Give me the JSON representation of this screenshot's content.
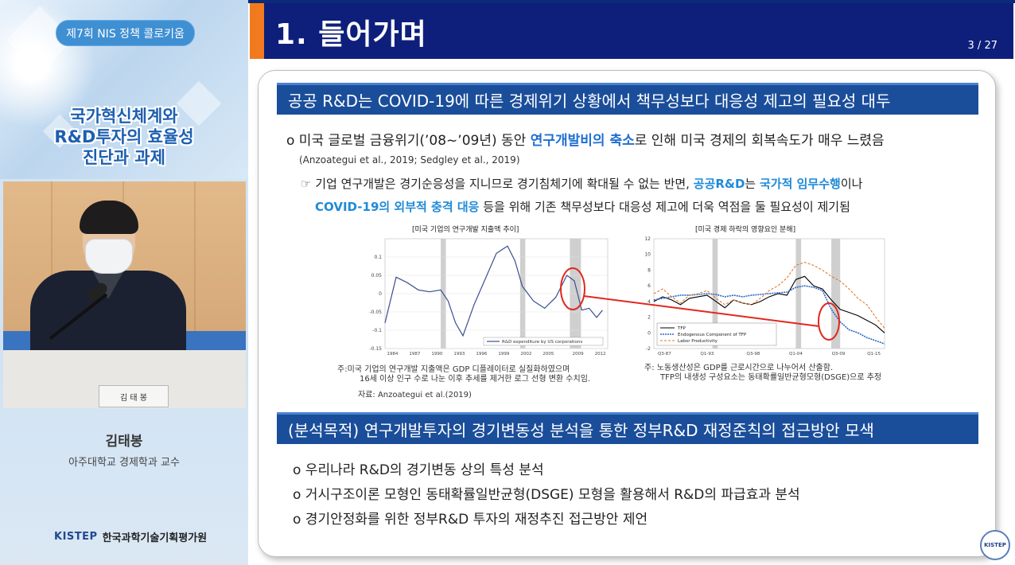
{
  "left_panel": {
    "event_label": "제7회 NIS 정책 콜로키움",
    "session_title_lines": [
      "국가혁신체계와",
      "R&D투자의 효율성",
      "진단과 과제"
    ],
    "nameplate": "김 태 봉",
    "speaker_name": "김태봉",
    "speaker_affiliation": "아주대학교 경제학과 교수",
    "org_logo_mark": "KISTEP",
    "org_name": "한국과학기술기획평가원"
  },
  "slide": {
    "title": "1. 들어가며",
    "page": "3 / 27",
    "section1": "공공 R&D는 COVID-19에 따른 경제위기 상황에서 책무성보다 대응성 제고의 필요성 대두",
    "bullet1": {
      "prefix": "o 미국 글로벌 금융위기(’08~’09년) 동안 ",
      "highlight": "연구개발비의 축소",
      "suffix": "로 인해 미국 경제의 회복속도가 매우 느렸음"
    },
    "citation1": "(Anzoategui et al., 2019; Sedgley et al., 2019)",
    "point": {
      "marker": "☞",
      "line1_a": " 기업 연구개발은 경기순응성을 지니므로 경기침체기에 확대될 수 없는 반면, ",
      "line1_hl1": "공공R&D",
      "line1_b": "는 ",
      "line1_hl2": "국가적 임무수행",
      "line1_c": "이나",
      "line2_hl": "COVID-19의 외부적 충격 대응",
      "line2_b": " 등을 위해 기존 책무성보다 대응성 제고에 더욱 역점을 둘 필요성이 제기됨"
    },
    "chart1_title": "[미국 기업의 연구개발 지출액 추이]",
    "chart1_note_line1": "주:미국 기업의 연구개발 지출액은 GDP 디플레이터로 실질화하였으며",
    "chart1_note_line2": "16세 이상 인구 수로 나눈 이후 추세를 제거한 로그 선형 변환 수치임.",
    "chart1_source": "자료: Anzoategui et al.(2019)",
    "chart2_title": "[미국 경제 하락의 영향요인 분해]",
    "chart2_note_line1": "주: 노동생산성은 GDP를 근로시간으로 나누어서 산출함.",
    "chart2_note_line2": "TFP의 내생성 구성요소는 동태확률일반균형모형(DSGE)으로 추정",
    "section2": "(분석목적) 연구개발투자의 경기변동성 분석을 통한 정부R&D 재정준칙의 접근방안 모색",
    "bullets": [
      "o 우리나라 R&D의 경기변동 상의 특성 분석",
      "o 거시구조이론 모형인 동태확률일반균형(DSGE) 모형을 활용해서 R&D의 파급효과 분석",
      "o 경기안정화를 위한 정부R&D 투자의 재정추진 접근방안 제언"
    ],
    "corner_seal": "KISTEP"
  },
  "chart_data": [
    {
      "type": "line",
      "x_tick_labels": [
        "1984",
        "1987",
        "1990",
        "1993",
        "1996",
        "1999",
        "2002",
        "2005",
        "2009",
        "2012"
      ],
      "y_tick_labels": [
        "0.1",
        "0.05",
        "0",
        "-0.05",
        "-0.1",
        "-0.15"
      ],
      "ylim": [
        -0.15,
        0.15
      ],
      "xlim": [
        1983,
        2013
      ],
      "shaded_periods": [
        [
          1990.5,
          1991.2
        ],
        [
          2001.2,
          2001.9
        ],
        [
          2007.9,
          2009.4
        ]
      ],
      "series": [
        {
          "name": "R&D expenditure by US corporations",
          "color": "#3b4f8f",
          "x": [
            1983,
            1984.5,
            1986,
            1987.5,
            1989,
            1990.5,
            1991.5,
            1992.5,
            1993.5,
            1995,
            1996.5,
            1998,
            1999.5,
            2000.5,
            2001.5,
            2003,
            2004.5,
            2006,
            2007.5,
            2008.5,
            2009.5,
            2010.5,
            2011.5,
            2012.3
          ],
          "y": [
            -0.08,
            0.045,
            0.03,
            0.01,
            0.005,
            0.01,
            -0.02,
            -0.08,
            -0.115,
            -0.03,
            0.04,
            0.11,
            0.13,
            0.09,
            0.02,
            -0.02,
            -0.04,
            -0.01,
            0.05,
            0.035,
            -0.045,
            -0.04,
            -0.065,
            -0.045
          ]
        }
      ]
    },
    {
      "type": "line",
      "x_tick_labels": [
        "Q3-87",
        "Q1-93",
        "Q3-98",
        "Q1-04",
        "Q3-09",
        "Q1-15"
      ],
      "y_tick_labels": [
        "12",
        "10",
        "8",
        "6",
        "4",
        "2",
        "0",
        "-2"
      ],
      "ylim": [
        -2,
        12
      ],
      "shaded_periods": [
        [
          3.3,
          3.6
        ],
        [
          8.0,
          8.3
        ],
        [
          10.0,
          10.5
        ]
      ],
      "legend": {
        "placement": "bottom-left",
        "entries": [
          "TFP",
          "Endogenous Component of TFP",
          "Labor Productivity"
        ]
      },
      "series": [
        {
          "name": "TFP",
          "color": "#000000",
          "x": [
            0,
            0.5,
            1,
            1.5,
            2,
            2.5,
            3,
            3.5,
            4,
            4.5,
            5,
            5.5,
            6,
            6.5,
            7,
            7.5,
            8,
            8.5,
            9,
            9.5,
            10,
            10.5,
            11,
            11.5,
            12,
            12.5,
            13
          ],
          "y": [
            4,
            4.6,
            4.2,
            3.6,
            4.4,
            4.6,
            4.8,
            4.0,
            3.2,
            4.2,
            3.8,
            3.6,
            4.0,
            4.6,
            5.0,
            4.8,
            6.8,
            7.2,
            6.0,
            5.6,
            4.2,
            3.0,
            2.6,
            2.2,
            1.6,
            1.0,
            0.0
          ]
        },
        {
          "name": "Endogenous Component of TFP",
          "color": "#2a66c6",
          "x": [
            0,
            0.5,
            1,
            1.5,
            2,
            2.5,
            3,
            3.5,
            4,
            4.5,
            5,
            5.5,
            6,
            6.5,
            7,
            7.5,
            8,
            8.5,
            9,
            9.5,
            10,
            10.5,
            11,
            11.5,
            12,
            12.5,
            13
          ],
          "y": [
            4.2,
            4.4,
            4.6,
            4.8,
            4.8,
            4.9,
            5.0,
            4.9,
            4.6,
            4.8,
            4.6,
            4.8,
            4.9,
            5.0,
            5.1,
            5.2,
            5.8,
            6.0,
            5.8,
            5.4,
            3.0,
            1.4,
            0.4,
            0.0,
            -0.6,
            -1.0,
            -1.4
          ]
        },
        {
          "name": "Labor Productivity",
          "color": "#e07a2b",
          "x": [
            0,
            0.5,
            1,
            1.5,
            2,
            2.5,
            3,
            3.5,
            4,
            4.5,
            5,
            5.5,
            6,
            6.5,
            7,
            7.5,
            8,
            8.5,
            9,
            9.5,
            10,
            10.5,
            11,
            11.5,
            12,
            12.5,
            13
          ],
          "y": [
            5,
            5.6,
            4.6,
            3.8,
            4.8,
            5.0,
            5.4,
            4.4,
            3.6,
            4.2,
            3.8,
            3.6,
            4.4,
            5.4,
            6.0,
            7.0,
            8.6,
            9.0,
            8.6,
            8.0,
            7.2,
            6.6,
            5.6,
            4.4,
            3.6,
            2.0,
            0.6
          ]
        }
      ]
    }
  ]
}
